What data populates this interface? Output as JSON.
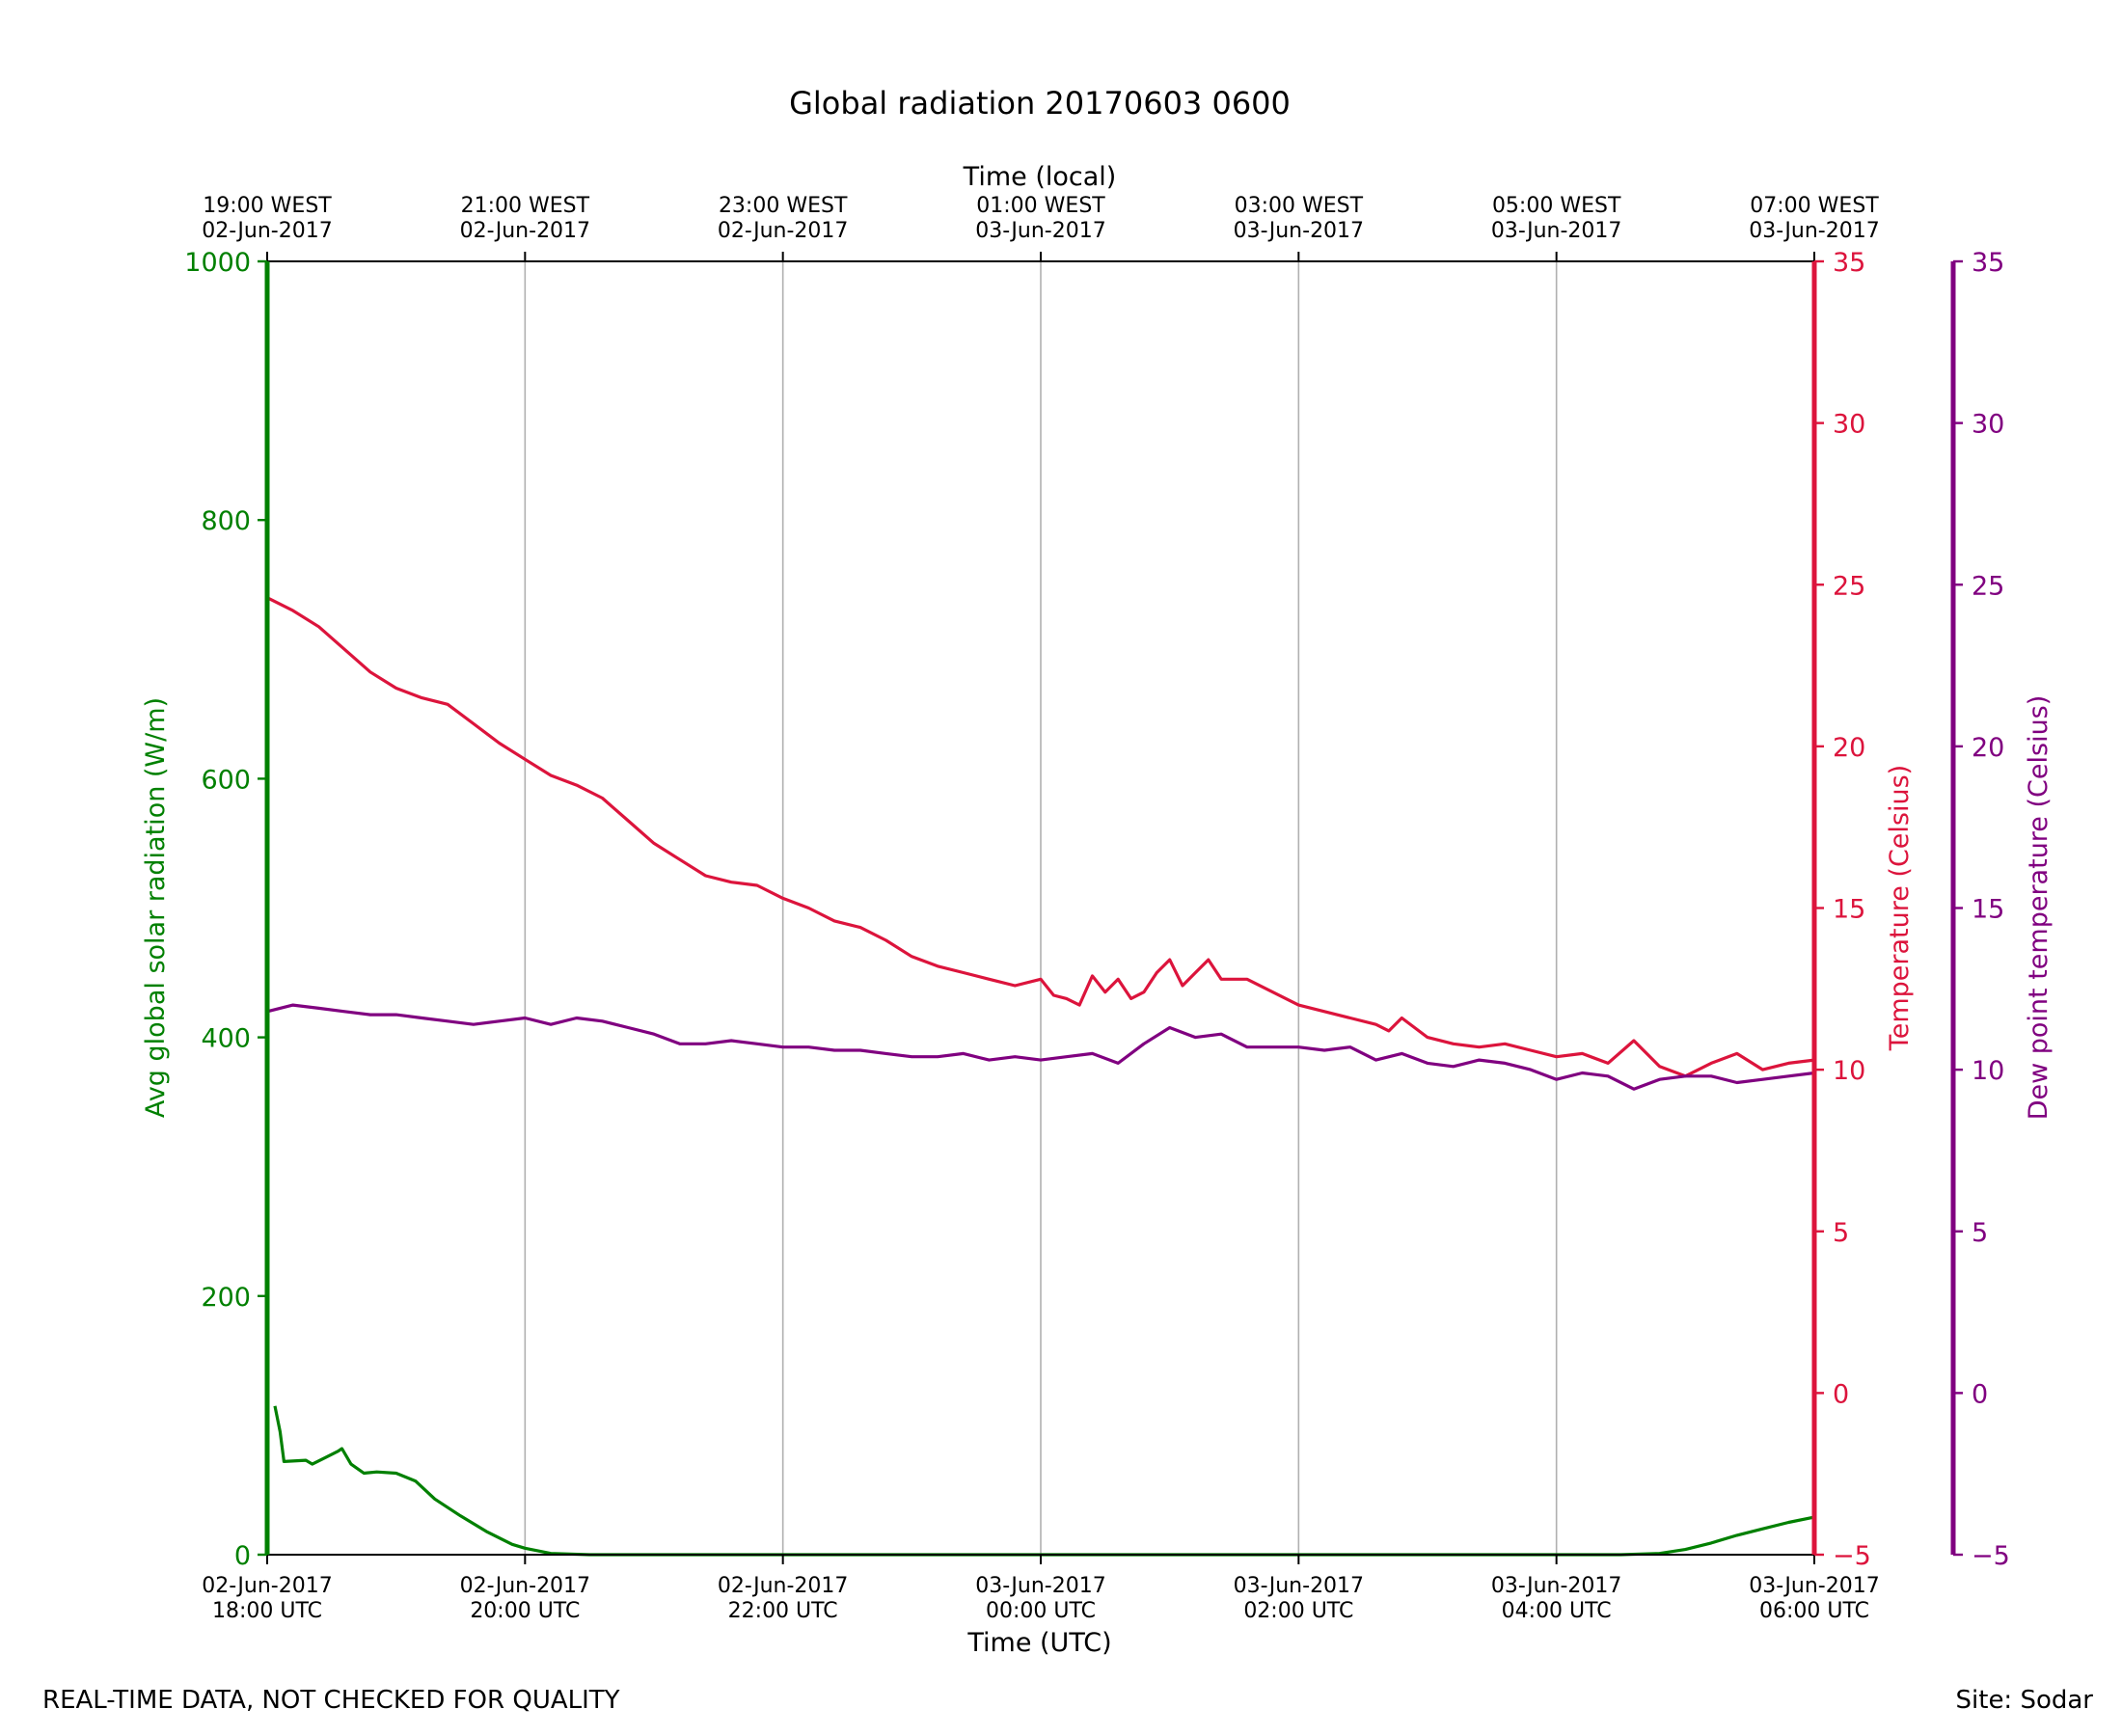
{
  "chart_data": {
    "type": "line",
    "title": "Global radiation 20170603 0600",
    "xlabel": "Time (UTC)",
    "x2label": "Time (local)",
    "x_range_hours_utc": [
      0,
      12
    ],
    "xticks_bottom": [
      {
        "h": 0,
        "l1": "02-Jun-2017",
        "l2": "18:00 UTC"
      },
      {
        "h": 2,
        "l1": "02-Jun-2017",
        "l2": "20:00 UTC"
      },
      {
        "h": 4,
        "l1": "02-Jun-2017",
        "l2": "22:00 UTC"
      },
      {
        "h": 6,
        "l1": "03-Jun-2017",
        "l2": "00:00 UTC"
      },
      {
        "h": 8,
        "l1": "03-Jun-2017",
        "l2": "02:00 UTC"
      },
      {
        "h": 10,
        "l1": "03-Jun-2017",
        "l2": "04:00 UTC"
      },
      {
        "h": 12,
        "l1": "03-Jun-2017",
        "l2": "06:00 UTC"
      }
    ],
    "xticks_top": [
      {
        "h": 0,
        "l1": "19:00 WEST",
        "l2": "02-Jun-2017"
      },
      {
        "h": 2,
        "l1": "21:00 WEST",
        "l2": "02-Jun-2017"
      },
      {
        "h": 4,
        "l1": "23:00 WEST",
        "l2": "02-Jun-2017"
      },
      {
        "h": 6,
        "l1": "01:00 WEST",
        "l2": "03-Jun-2017"
      },
      {
        "h": 8,
        "l1": "03:00 WEST",
        "l2": "03-Jun-2017"
      },
      {
        "h": 10,
        "l1": "05:00 WEST",
        "l2": "03-Jun-2017"
      },
      {
        "h": 12,
        "l1": "07:00 WEST",
        "l2": "03-Jun-2017"
      }
    ],
    "axes": {
      "radiation": {
        "label": "Avg global solar radiation (W/m)",
        "ylim": [
          0,
          1000
        ],
        "ticks": [
          "0",
          "200",
          "400",
          "600",
          "800",
          "1000"
        ],
        "color": "#008000"
      },
      "temperature": {
        "label": "Temperature (Celsius)",
        "ylim": [
          -5,
          35
        ],
        "ticks": [
          "−5",
          "0",
          "5",
          "10",
          "15",
          "20",
          "25",
          "30",
          "35"
        ],
        "color": "#dc143c"
      },
      "dewpoint": {
        "label": "Dew point temperature (Celsius)",
        "ylim": [
          -5,
          35
        ],
        "ticks": [
          "−5",
          "0",
          "5",
          "10",
          "15",
          "20",
          "25",
          "30",
          "35"
        ],
        "color": "#800080"
      }
    },
    "series": [
      {
        "name": "Avg global solar radiation",
        "axis": "radiation",
        "x": [
          0.06,
          0.1,
          0.13,
          0.3,
          0.35,
          0.45,
          0.55,
          0.58,
          0.65,
          0.75,
          0.85,
          1.0,
          1.15,
          1.3,
          1.5,
          1.7,
          1.9,
          2.0,
          2.2,
          2.5,
          3,
          4,
          5,
          6,
          7,
          8,
          9,
          10,
          10.5,
          10.8,
          11.0,
          11.2,
          11.4,
          11.6,
          11.8,
          12.0
        ],
        "values": [
          115,
          95,
          72,
          73,
          70,
          75,
          80,
          82,
          70,
          63,
          64,
          63,
          57,
          43,
          30,
          18,
          8,
          5,
          1,
          0,
          0,
          0,
          0,
          0,
          0,
          0,
          0,
          0,
          0,
          1,
          4,
          9,
          15,
          20,
          25,
          29
        ]
      },
      {
        "name": "Temperature",
        "axis": "temperature",
        "x": [
          0,
          0.2,
          0.4,
          0.6,
          0.8,
          1.0,
          1.2,
          1.4,
          1.6,
          1.8,
          2.0,
          2.2,
          2.4,
          2.6,
          2.8,
          3.0,
          3.2,
          3.4,
          3.6,
          3.8,
          4.0,
          4.2,
          4.4,
          4.6,
          4.8,
          5.0,
          5.2,
          5.4,
          5.6,
          5.8,
          6.0,
          6.1,
          6.2,
          6.3,
          6.4,
          6.5,
          6.6,
          6.7,
          6.8,
          6.9,
          7.0,
          7.1,
          7.2,
          7.3,
          7.4,
          7.6,
          7.8,
          8.0,
          8.2,
          8.4,
          8.6,
          8.7,
          8.8,
          9.0,
          9.2,
          9.4,
          9.6,
          9.8,
          10.0,
          10.2,
          10.4,
          10.6,
          10.8,
          11.0,
          11.2,
          11.4,
          11.6,
          11.8,
          12.0
        ],
        "values": [
          24.6,
          24.2,
          23.7,
          23.0,
          22.3,
          21.8,
          21.5,
          21.3,
          20.7,
          20.1,
          19.6,
          19.1,
          18.8,
          18.4,
          17.7,
          17.0,
          16.5,
          16.0,
          15.8,
          15.7,
          15.3,
          15.0,
          14.6,
          14.4,
          14.0,
          13.5,
          13.2,
          13.0,
          12.8,
          12.6,
          12.8,
          12.3,
          12.2,
          12.0,
          12.9,
          12.4,
          12.8,
          12.2,
          12.4,
          13.0,
          13.4,
          12.6,
          13.0,
          13.4,
          12.8,
          12.8,
          12.4,
          12.0,
          11.8,
          11.6,
          11.4,
          11.2,
          11.6,
          11.0,
          10.8,
          10.7,
          10.8,
          10.6,
          10.4,
          10.5,
          10.2,
          10.9,
          10.1,
          9.8,
          10.2,
          10.5,
          10.0,
          10.2,
          10.3
        ]
      },
      {
        "name": "Dew point temperature",
        "axis": "dewpoint",
        "x": [
          0,
          0.2,
          0.4,
          0.6,
          0.8,
          1.0,
          1.2,
          1.4,
          1.6,
          1.8,
          2.0,
          2.2,
          2.4,
          2.6,
          2.8,
          3.0,
          3.2,
          3.4,
          3.6,
          3.8,
          4.0,
          4.2,
          4.4,
          4.6,
          4.8,
          5.0,
          5.2,
          5.4,
          5.6,
          5.8,
          6.0,
          6.2,
          6.4,
          6.6,
          6.8,
          7.0,
          7.2,
          7.4,
          7.6,
          7.8,
          8.0,
          8.2,
          8.4,
          8.6,
          8.8,
          9.0,
          9.2,
          9.4,
          9.6,
          9.8,
          10.0,
          10.2,
          10.4,
          10.6,
          10.8,
          11.0,
          11.2,
          11.4,
          11.6,
          11.8,
          12.0
        ],
        "values": [
          11.8,
          12.0,
          11.9,
          11.8,
          11.7,
          11.7,
          11.6,
          11.5,
          11.4,
          11.5,
          11.6,
          11.4,
          11.6,
          11.5,
          11.3,
          11.1,
          10.8,
          10.8,
          10.9,
          10.8,
          10.7,
          10.7,
          10.6,
          10.6,
          10.5,
          10.4,
          10.4,
          10.5,
          10.3,
          10.4,
          10.3,
          10.4,
          10.5,
          10.2,
          10.8,
          11.3,
          11.0,
          11.1,
          10.7,
          10.7,
          10.7,
          10.6,
          10.7,
          10.3,
          10.5,
          10.2,
          10.1,
          10.3,
          10.2,
          10.0,
          9.7,
          9.9,
          9.8,
          9.4,
          9.7,
          9.8,
          9.8,
          9.6,
          9.7,
          9.8,
          9.9
        ]
      }
    ]
  },
  "footer": {
    "left": "REAL-TIME DATA, NOT CHECKED FOR QUALITY",
    "right": "Site: Sodar"
  }
}
